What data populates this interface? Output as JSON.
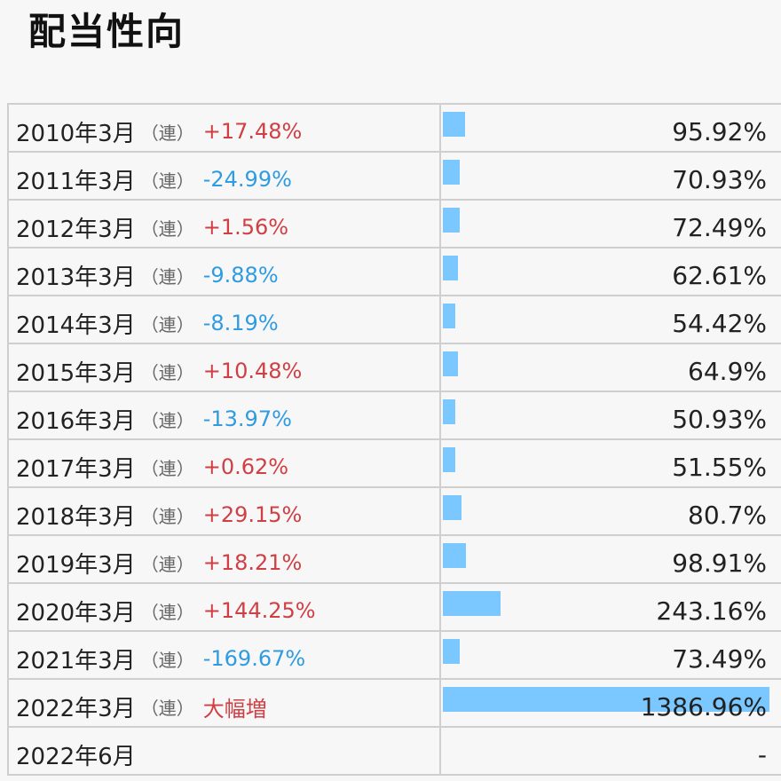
{
  "title": "配当性向",
  "consol_label": "（連）",
  "chart_data": {
    "type": "bar",
    "orientation": "horizontal",
    "title": "配当性向",
    "xlim": [
      0,
      1386.96
    ],
    "rows": [
      {
        "period": "2010年3月",
        "consolidated": true,
        "change": "+17.48%",
        "direction": "up",
        "value": 95.92,
        "value_label": "95.92%"
      },
      {
        "period": "2011年3月",
        "consolidated": true,
        "change": "-24.99%",
        "direction": "down",
        "value": 70.93,
        "value_label": "70.93%"
      },
      {
        "period": "2012年3月",
        "consolidated": true,
        "change": "+1.56%",
        "direction": "up",
        "value": 72.49,
        "value_label": "72.49%"
      },
      {
        "period": "2013年3月",
        "consolidated": true,
        "change": "-9.88%",
        "direction": "down",
        "value": 62.61,
        "value_label": "62.61%"
      },
      {
        "period": "2014年3月",
        "consolidated": true,
        "change": "-8.19%",
        "direction": "down",
        "value": 54.42,
        "value_label": "54.42%"
      },
      {
        "period": "2015年3月",
        "consolidated": true,
        "change": "+10.48%",
        "direction": "up",
        "value": 64.9,
        "value_label": "64.9%"
      },
      {
        "period": "2016年3月",
        "consolidated": true,
        "change": "-13.97%",
        "direction": "down",
        "value": 50.93,
        "value_label": "50.93%"
      },
      {
        "period": "2017年3月",
        "consolidated": true,
        "change": "+0.62%",
        "direction": "up",
        "value": 51.55,
        "value_label": "51.55%"
      },
      {
        "period": "2018年3月",
        "consolidated": true,
        "change": "+29.15%",
        "direction": "up",
        "value": 80.7,
        "value_label": "80.7%"
      },
      {
        "period": "2019年3月",
        "consolidated": true,
        "change": "+18.21%",
        "direction": "up",
        "value": 98.91,
        "value_label": "98.91%"
      },
      {
        "period": "2020年3月",
        "consolidated": true,
        "change": "+144.25%",
        "direction": "up",
        "value": 243.16,
        "value_label": "243.16%"
      },
      {
        "period": "2021年3月",
        "consolidated": true,
        "change": "-169.67%",
        "direction": "down",
        "value": 73.49,
        "value_label": "73.49%"
      },
      {
        "period": "2022年3月",
        "consolidated": true,
        "change": "大幅増",
        "direction": "up",
        "value": 1386.96,
        "value_label": "1386.96%"
      },
      {
        "period": "2022年6月",
        "consolidated": false,
        "change": "",
        "direction": "",
        "value": null,
        "value_label": "-"
      }
    ]
  },
  "colors": {
    "up": "#cf3f44",
    "down": "#2f9be0",
    "bar": "#7ac8ff",
    "grid": "#cfcfcf"
  }
}
